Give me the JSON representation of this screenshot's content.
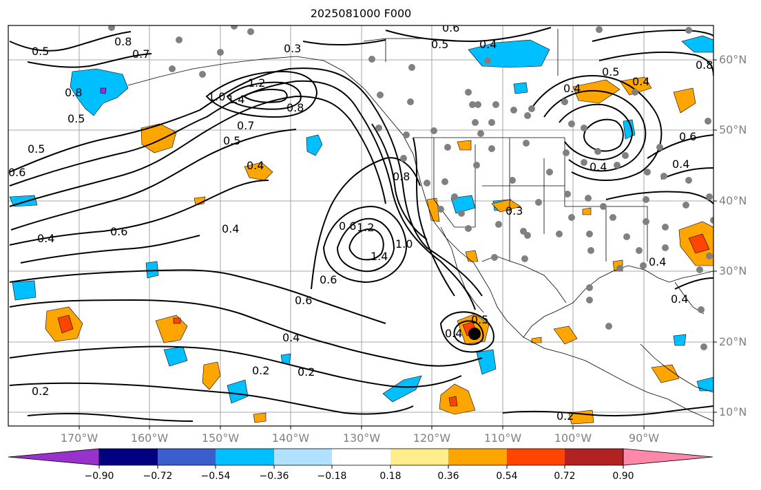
{
  "title": "2025081000 F000",
  "lat_labels": [
    "60°N",
    "50°N",
    "40°N",
    "30°N",
    "20°N",
    "10°N"
  ],
  "lon_labels": [
    "170°W",
    "160°W",
    "150°W",
    "140°W",
    "130°W",
    "120°W",
    "110°W",
    "100°W",
    "90°W"
  ],
  "colorbar": {
    "tick_labels": [
      "−0.90",
      "−0.72",
      "−0.54",
      "−0.36",
      "−0.18",
      "0.18",
      "0.36",
      "0.54",
      "0.72",
      "0.90"
    ],
    "colors": [
      "#9932cc",
      "#000080",
      "#3a5fcd",
      "#00bfff",
      "#b0e2ff",
      "#ffffff",
      "#ffec8b",
      "#ffa500",
      "#ff4500",
      "#b22222",
      "#ff88aa"
    ]
  },
  "contour_labels": [
    "0.5",
    "0.8",
    "0.7",
    "0.3",
    "0.4",
    "0.6",
    "0.5",
    "1.0",
    "1.4",
    "1.2",
    "0.8",
    "0.7",
    "0.5",
    "0.8",
    "0.5",
    "0.5",
    "0.6",
    "0.4",
    "0.6",
    "0.4",
    "0.6",
    "0.4",
    "1.2",
    "1.4",
    "1.0",
    "0.6",
    "0.8",
    "0.6",
    "0.4",
    "0.2",
    "0.2",
    "0.4",
    "0.5",
    "0.2",
    "0.2",
    "0.4",
    "0.5",
    "0.4",
    "0.8",
    "0.4",
    "0.6",
    "0.4",
    "0.4",
    "0.3",
    "0.4"
  ]
}
